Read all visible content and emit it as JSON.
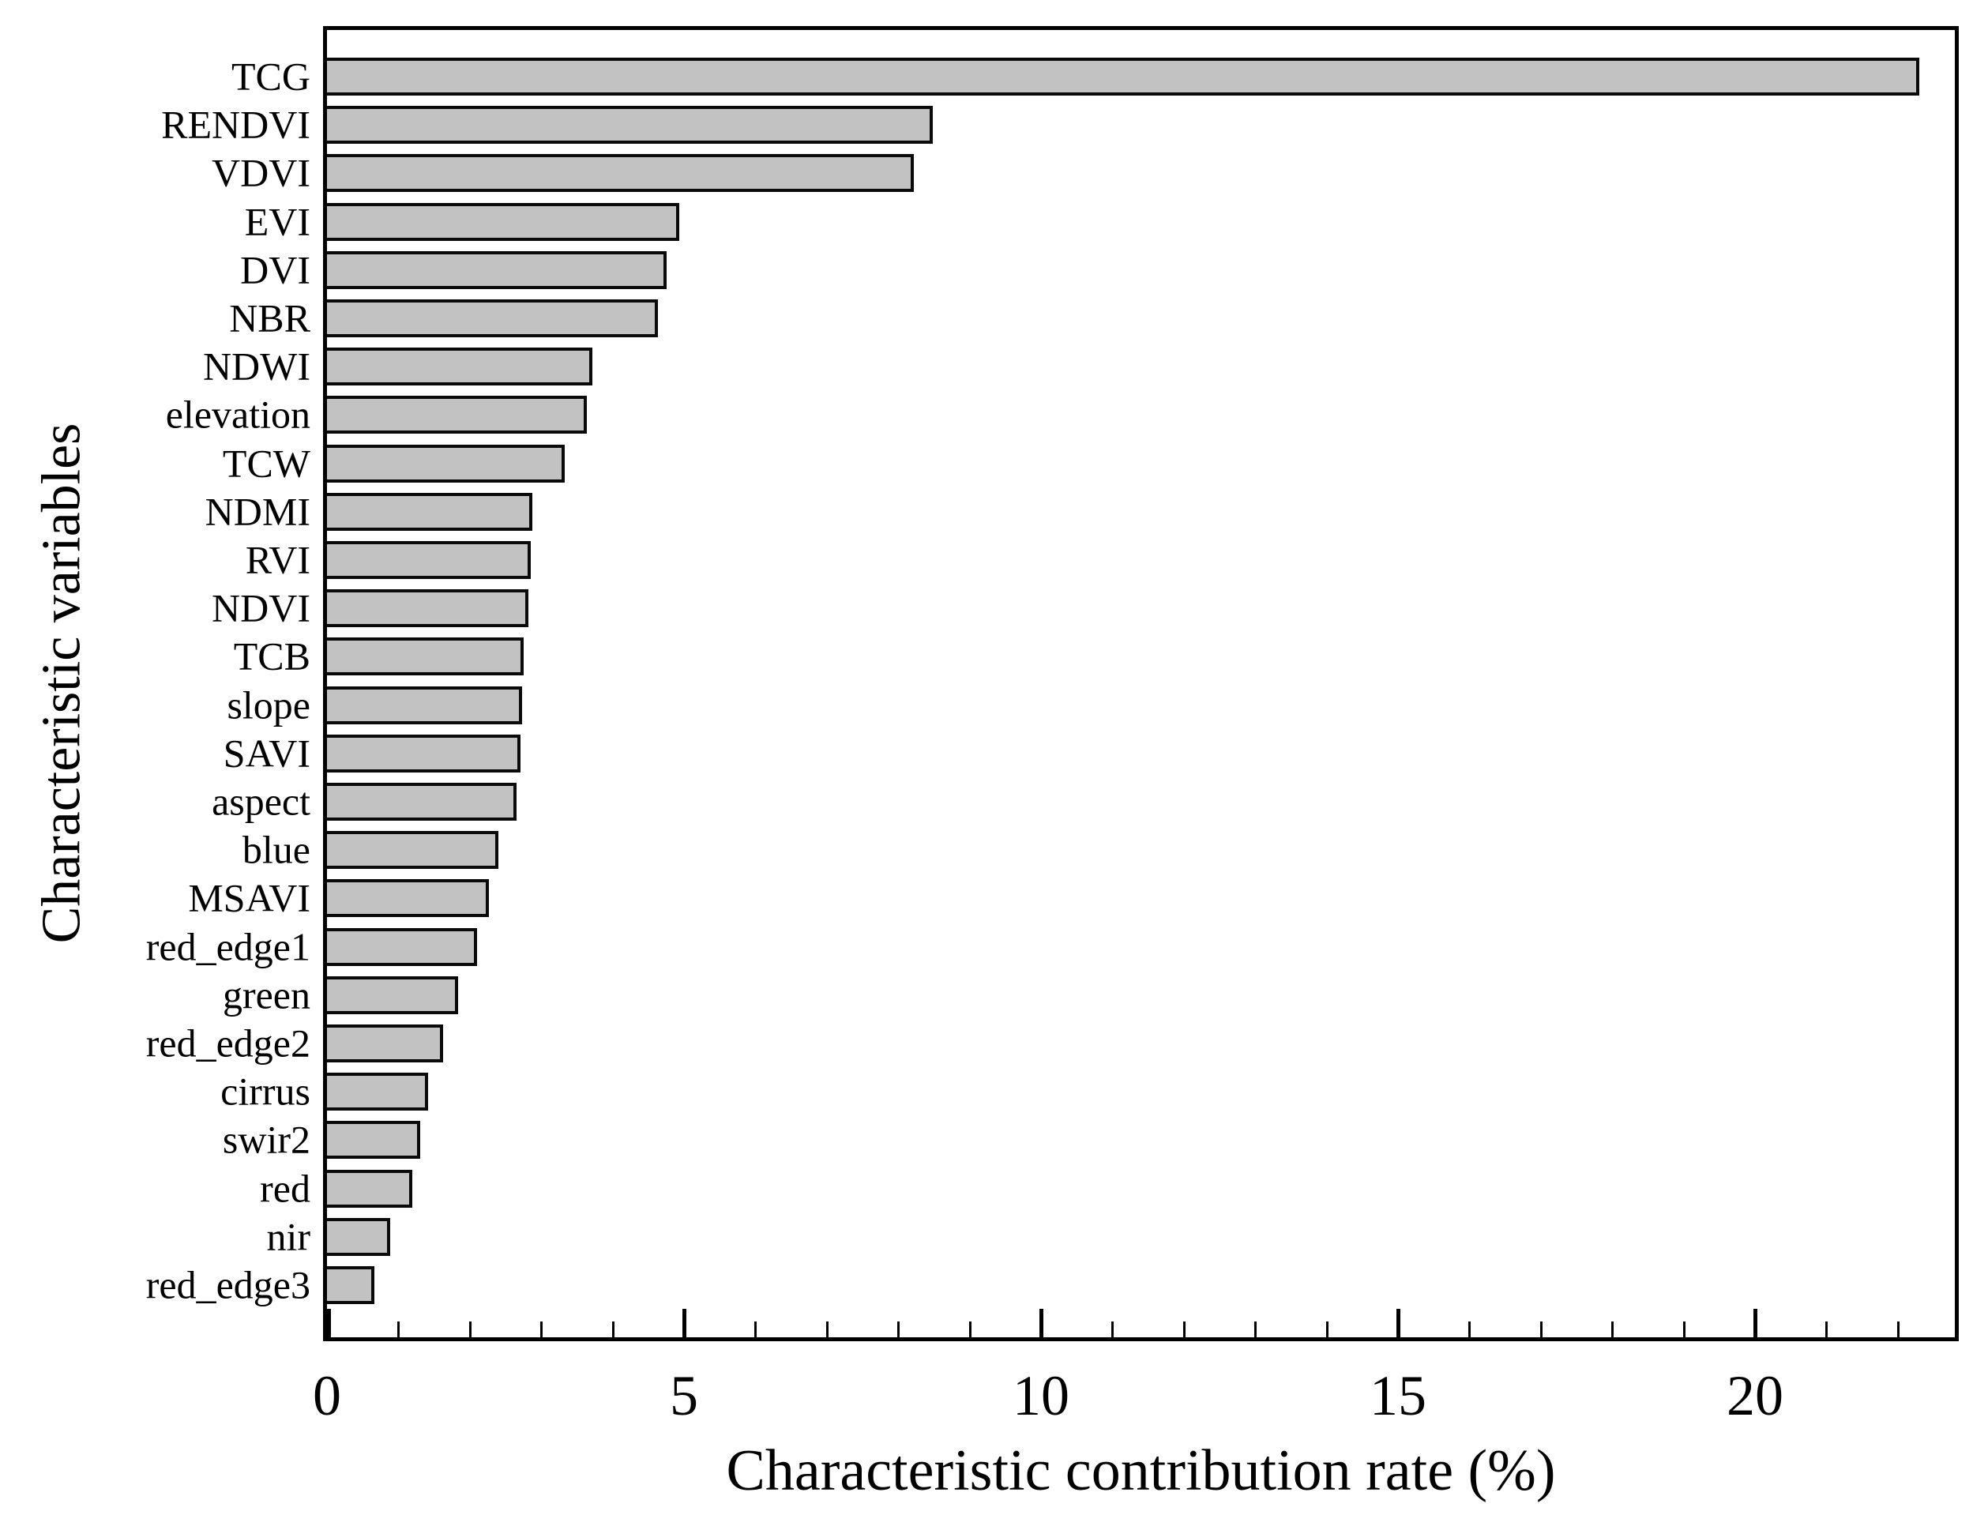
{
  "chart_data": {
    "type": "bar",
    "orientation": "horizontal",
    "xlabel": "Characteristic contribution rate (%)",
    "ylabel": "Characteristic variables",
    "categories": [
      "TCG",
      "RENDVI",
      "VDVI",
      "EVI",
      "DVI",
      "NBR",
      "NDWI",
      "elevation",
      "TCW",
      "NDMI",
      "RVI",
      "NDVI",
      "TCB",
      "slope",
      "SAVI",
      "aspect",
      "blue",
      "MSAVI",
      "red_edge1",
      "green",
      "red_edge2",
      "cirrus",
      "swir2",
      "red",
      "nir",
      "red_edge3"
    ],
    "values": [
      22.3,
      8.48,
      8.22,
      4.93,
      4.76,
      4.64,
      3.72,
      3.64,
      3.33,
      2.88,
      2.85,
      2.82,
      2.75,
      2.73,
      2.71,
      2.66,
      2.4,
      2.27,
      2.1,
      1.84,
      1.63,
      1.42,
      1.31,
      1.19,
      0.89,
      0.66
    ],
    "xlim": [
      0,
      22.8
    ],
    "xticks_major": [
      0,
      5,
      10,
      15,
      20
    ],
    "xtick_labels": [
      "0",
      "5",
      "10",
      "15",
      "20"
    ],
    "xticks_minor": [
      1,
      2,
      3,
      4,
      6,
      7,
      8,
      9,
      11,
      12,
      13,
      14,
      16,
      17,
      18,
      19,
      21,
      22
    ],
    "grid": false,
    "bar_fill": "#c2c2c2",
    "bar_border": "#0a0a0a",
    "axis_color": "#000000"
  }
}
